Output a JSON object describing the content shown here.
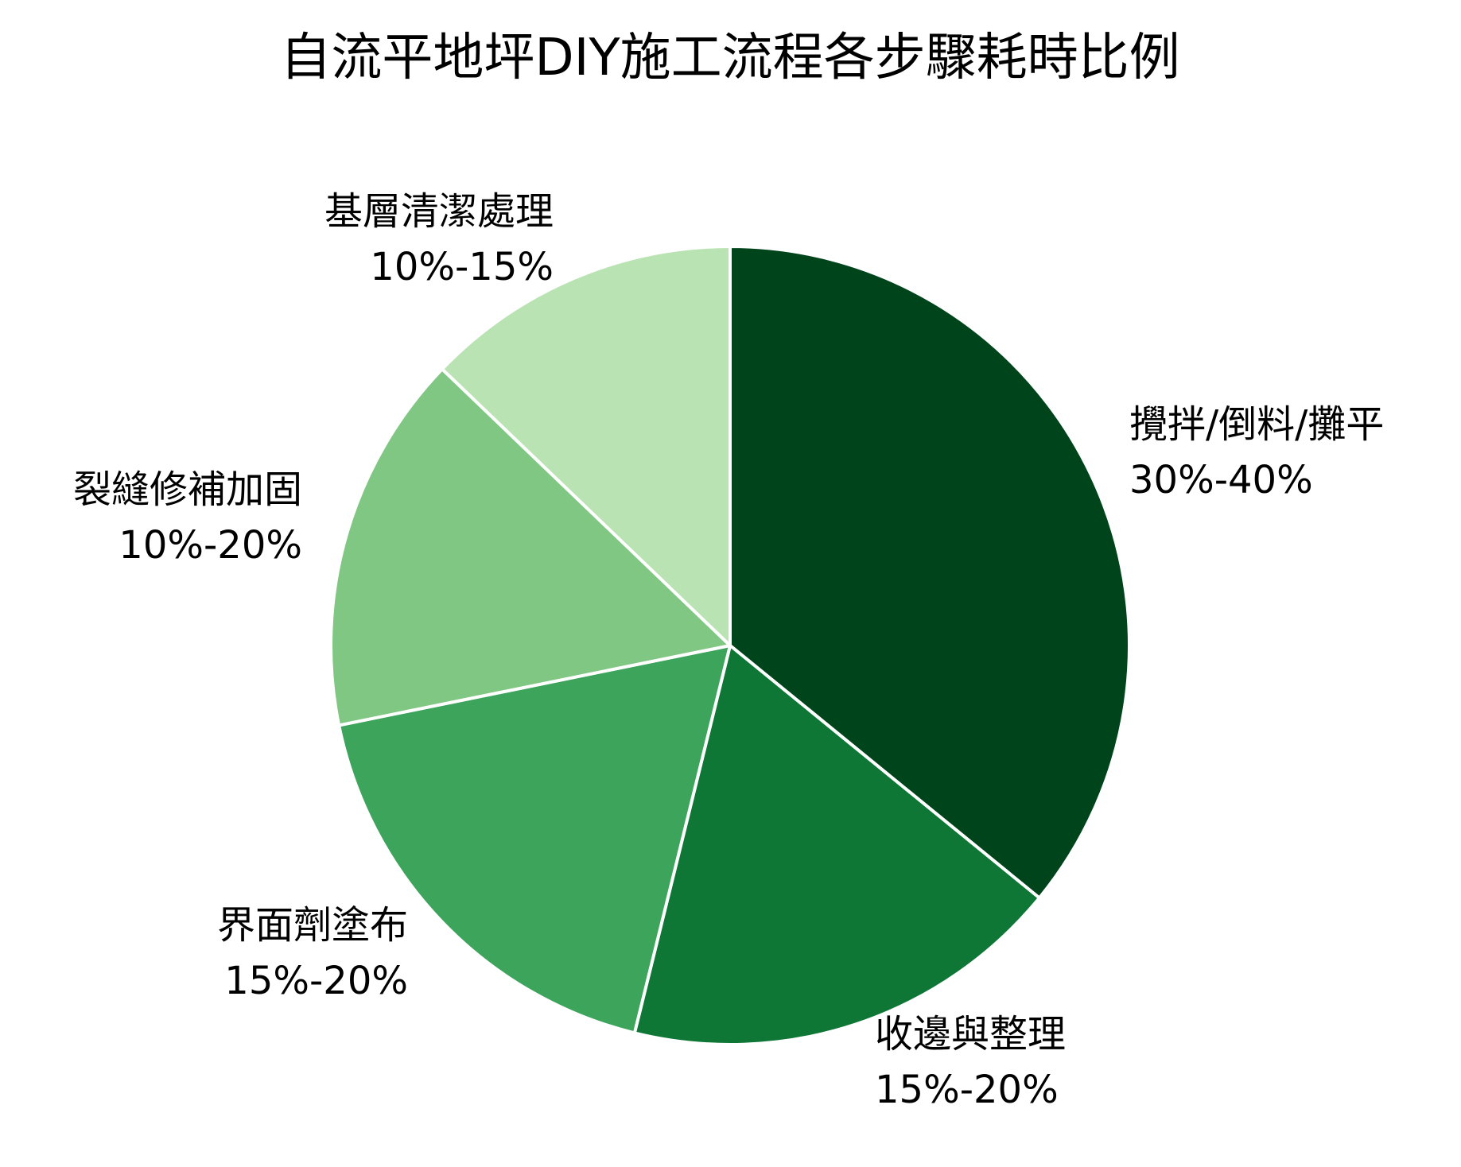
{
  "chart_data": {
    "type": "pie",
    "title": "自流平地坪DIY施工流程各步驟耗時比例",
    "start_angle_deg": 90,
    "direction": "clockwise",
    "slice_border_color": "#ffffff",
    "slices": [
      {
        "label": "攪拌/倒料/攤平",
        "range_text": "30%-40%",
        "value": 35,
        "color": "#00441b"
      },
      {
        "label": "收邊與整理",
        "range_text": "15%-20%",
        "value": 17.5,
        "color": "#0e7735"
      },
      {
        "label": "界面劑塗布",
        "range_text": "15%-20%",
        "value": 17.5,
        "color": "#3da45c"
      },
      {
        "label": "裂縫修補加固",
        "range_text": "10%-20%",
        "value": 15,
        "color": "#80c783"
      },
      {
        "label": "基層清潔處理",
        "range_text": "10%-15%",
        "value": 12.5,
        "color": "#bae3b3"
      }
    ]
  }
}
